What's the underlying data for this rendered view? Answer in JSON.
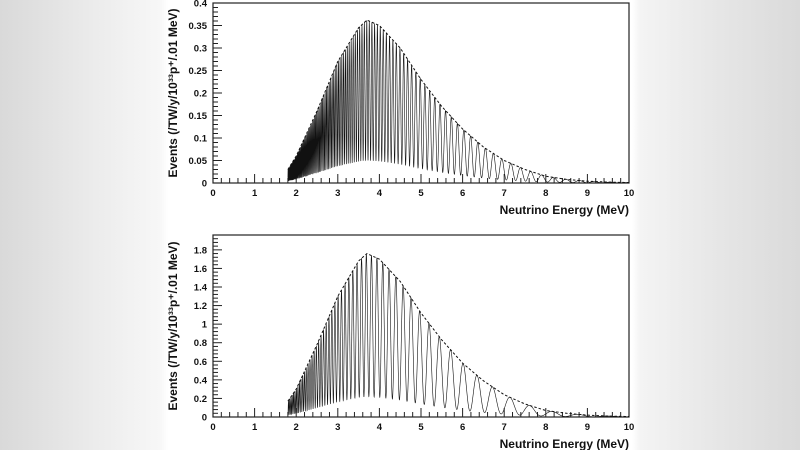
{
  "chart_data": [
    {
      "type": "line",
      "xlabel": "Neutrino Energy (MeV)",
      "ylabel": "Events (/TW/y/10³³p⁺/.01 MeV)",
      "xlim": [
        0,
        10
      ],
      "ylim": [
        0,
        0.4
      ],
      "xticks": [
        "0",
        "1",
        "2",
        "3",
        "4",
        "5",
        "6",
        "7",
        "8",
        "9",
        "10"
      ],
      "yticks": [
        "0",
        "0.05",
        "0.1",
        "0.15",
        "0.2",
        "0.25",
        "0.3",
        "0.35",
        "0.4"
      ],
      "grid": false,
      "series": [
        {
          "style": "dashed",
          "role": "unoscillated envelope",
          "x": [
            1.8,
            2,
            2.5,
            3,
            3.5,
            3.7,
            4,
            4.5,
            5,
            5.5,
            6,
            6.5,
            7,
            7.5,
            8,
            8.5,
            9,
            9.5,
            10
          ],
          "y": [
            0.03,
            0.06,
            0.16,
            0.27,
            0.345,
            0.362,
            0.35,
            0.3,
            0.23,
            0.17,
            0.12,
            0.08,
            0.05,
            0.03,
            0.015,
            0.008,
            0.004,
            0.002,
            0.001
          ]
        },
        {
          "style": "solid",
          "role": "oscillated spectrum",
          "min_at_peak": 0.05,
          "max_at_peak": 0.362
        }
      ]
    },
    {
      "type": "line",
      "xlabel": "Neutrino Energy (MeV)",
      "ylabel": "Events (/TW/y/10³³p⁺/.01 MeV)",
      "xlim": [
        0,
        10
      ],
      "ylim": [
        0,
        1.96
      ],
      "xticks": [
        "0",
        "1",
        "2",
        "3",
        "4",
        "5",
        "6",
        "7",
        "8",
        "9",
        "10"
      ],
      "yticks": [
        "0",
        "0.2",
        "0.4",
        "0.6",
        "0.8",
        "1",
        "1.2",
        "1.4",
        "1.6",
        "1.8"
      ],
      "grid": false,
      "series": [
        {
          "style": "dashed",
          "role": "unoscillated envelope",
          "x": [
            1.8,
            2,
            2.5,
            3,
            3.5,
            3.7,
            4,
            4.5,
            5,
            5.5,
            6,
            6.5,
            7,
            7.5,
            8,
            8.5,
            9,
            9.5,
            10
          ],
          "y": [
            0.17,
            0.3,
            0.78,
            1.3,
            1.68,
            1.76,
            1.7,
            1.46,
            1.12,
            0.83,
            0.58,
            0.39,
            0.24,
            0.14,
            0.07,
            0.04,
            0.02,
            0.01,
            0.005
          ]
        },
        {
          "style": "solid",
          "role": "oscillated spectrum",
          "min_at_peak": 0.22,
          "max_at_peak": 1.76
        }
      ]
    }
  ]
}
